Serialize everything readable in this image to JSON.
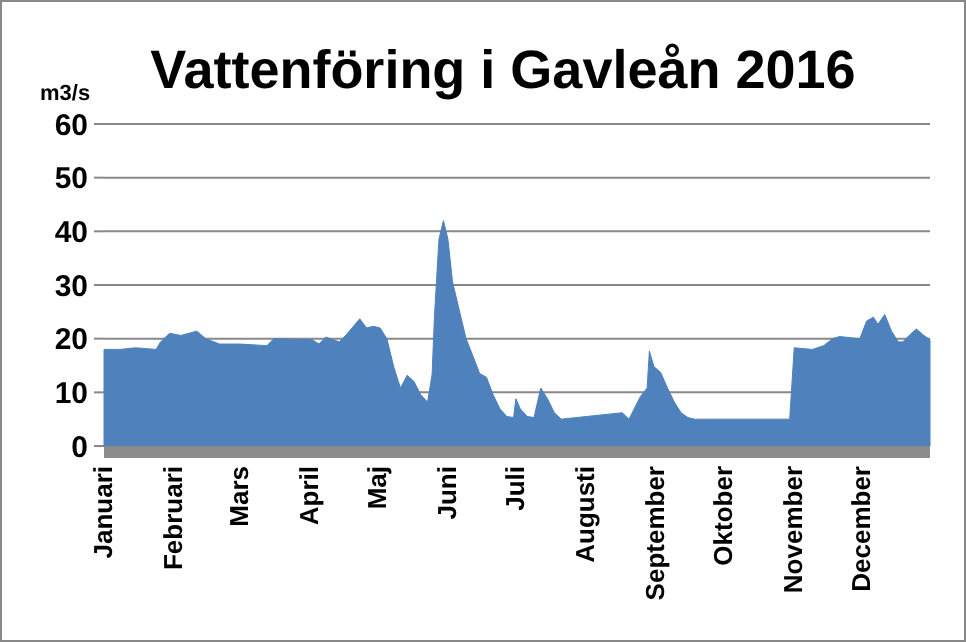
{
  "chart_data": {
    "type": "area",
    "title": "Vattenföring i Gavleån 2016",
    "ylabel": "m3/s",
    "grid": "y",
    "xlim": [
      "2016-01-01",
      "2016-12-31"
    ],
    "xticks": [
      {
        "value": "2016-01-01",
        "label": "Januari"
      },
      {
        "value": "2016-02-01",
        "label": "Februari"
      },
      {
        "value": "2016-03-01",
        "label": "Mars"
      },
      {
        "value": "2016-04-01",
        "label": "April"
      },
      {
        "value": "2016-05-01",
        "label": "Maj"
      },
      {
        "value": "2016-06-01",
        "label": "Juni"
      },
      {
        "value": "2016-07-01",
        "label": "Juli"
      },
      {
        "value": "2016-08-01",
        "label": "Augusti"
      },
      {
        "value": "2016-09-01",
        "label": "September"
      },
      {
        "value": "2016-10-01",
        "label": "Oktober"
      },
      {
        "value": "2016-11-01",
        "label": "November"
      },
      {
        "value": "2016-12-01",
        "label": "December"
      }
    ],
    "ylim": [
      0,
      60
    ],
    "yticks": [
      0,
      10,
      20,
      30,
      40,
      50,
      60
    ],
    "x": [
      "2016-01-01",
      "2016-01-08",
      "2016-01-15",
      "2016-01-24",
      "2016-01-26",
      "2016-01-30",
      "2016-02-04",
      "2016-02-11",
      "2016-02-15",
      "2016-02-21",
      "2016-03-01",
      "2016-03-13",
      "2016-03-16",
      "2016-04-02",
      "2016-04-05",
      "2016-04-08",
      "2016-04-14",
      "2016-04-17",
      "2016-04-23",
      "2016-04-26",
      "2016-04-29",
      "2016-05-02",
      "2016-05-05",
      "2016-05-08",
      "2016-05-11",
      "2016-05-14",
      "2016-05-17",
      "2016-05-20",
      "2016-05-23",
      "2016-05-25",
      "2016-05-26",
      "2016-05-28",
      "2016-05-30",
      "2016-06-01",
      "2016-06-03",
      "2016-06-06",
      "2016-06-09",
      "2016-06-12",
      "2016-06-15",
      "2016-06-18",
      "2016-06-21",
      "2016-06-24",
      "2016-06-27",
      "2016-06-30",
      "2016-07-01",
      "2016-07-03",
      "2016-07-06",
      "2016-07-09",
      "2016-07-12",
      "2016-07-15",
      "2016-07-18",
      "2016-07-21",
      "2016-08-17",
      "2016-08-20",
      "2016-08-25",
      "2016-08-28",
      "2016-08-29",
      "2016-08-31",
      "2016-09-03",
      "2016-09-06",
      "2016-09-09",
      "2016-09-12",
      "2016-09-15",
      "2016-09-18",
      "2016-10-30",
      "2016-11-01",
      "2016-11-09",
      "2016-11-14",
      "2016-11-18",
      "2016-11-21",
      "2016-11-30",
      "2016-12-03",
      "2016-12-06",
      "2016-12-08",
      "2016-12-11",
      "2016-12-14",
      "2016-12-17",
      "2016-12-19",
      "2016-12-22",
      "2016-12-25",
      "2016-12-28",
      "2016-12-31"
    ],
    "series": [
      {
        "color": "#4f81bd",
        "values": [
          18,
          18,
          18.3,
          18,
          19.4,
          21,
          20.6,
          21.4,
          20,
          19,
          19,
          18.7,
          20,
          19.8,
          19,
          20.3,
          19.4,
          20.7,
          23.7,
          22,
          22.3,
          22,
          20,
          14.8,
          10.8,
          13.2,
          12,
          9.5,
          8.2,
          13.4,
          24,
          38.5,
          42,
          38.5,
          30.6,
          25.3,
          20,
          16.8,
          13.5,
          12.8,
          9.5,
          6.9,
          5.5,
          5.3,
          8.8,
          6.9,
          5.5,
          5.3,
          10.8,
          8.8,
          6.2,
          5,
          6.2,
          5,
          9.2,
          10.8,
          17.7,
          14.8,
          13.7,
          10.8,
          8.2,
          6.2,
          5.3,
          5,
          5,
          18.3,
          18,
          18.7,
          20,
          20.4,
          20,
          23.3,
          24,
          22.7,
          24.5,
          21.4,
          19.4,
          19.4,
          20.7,
          21.8,
          20.7,
          19.8
        ]
      }
    ]
  }
}
